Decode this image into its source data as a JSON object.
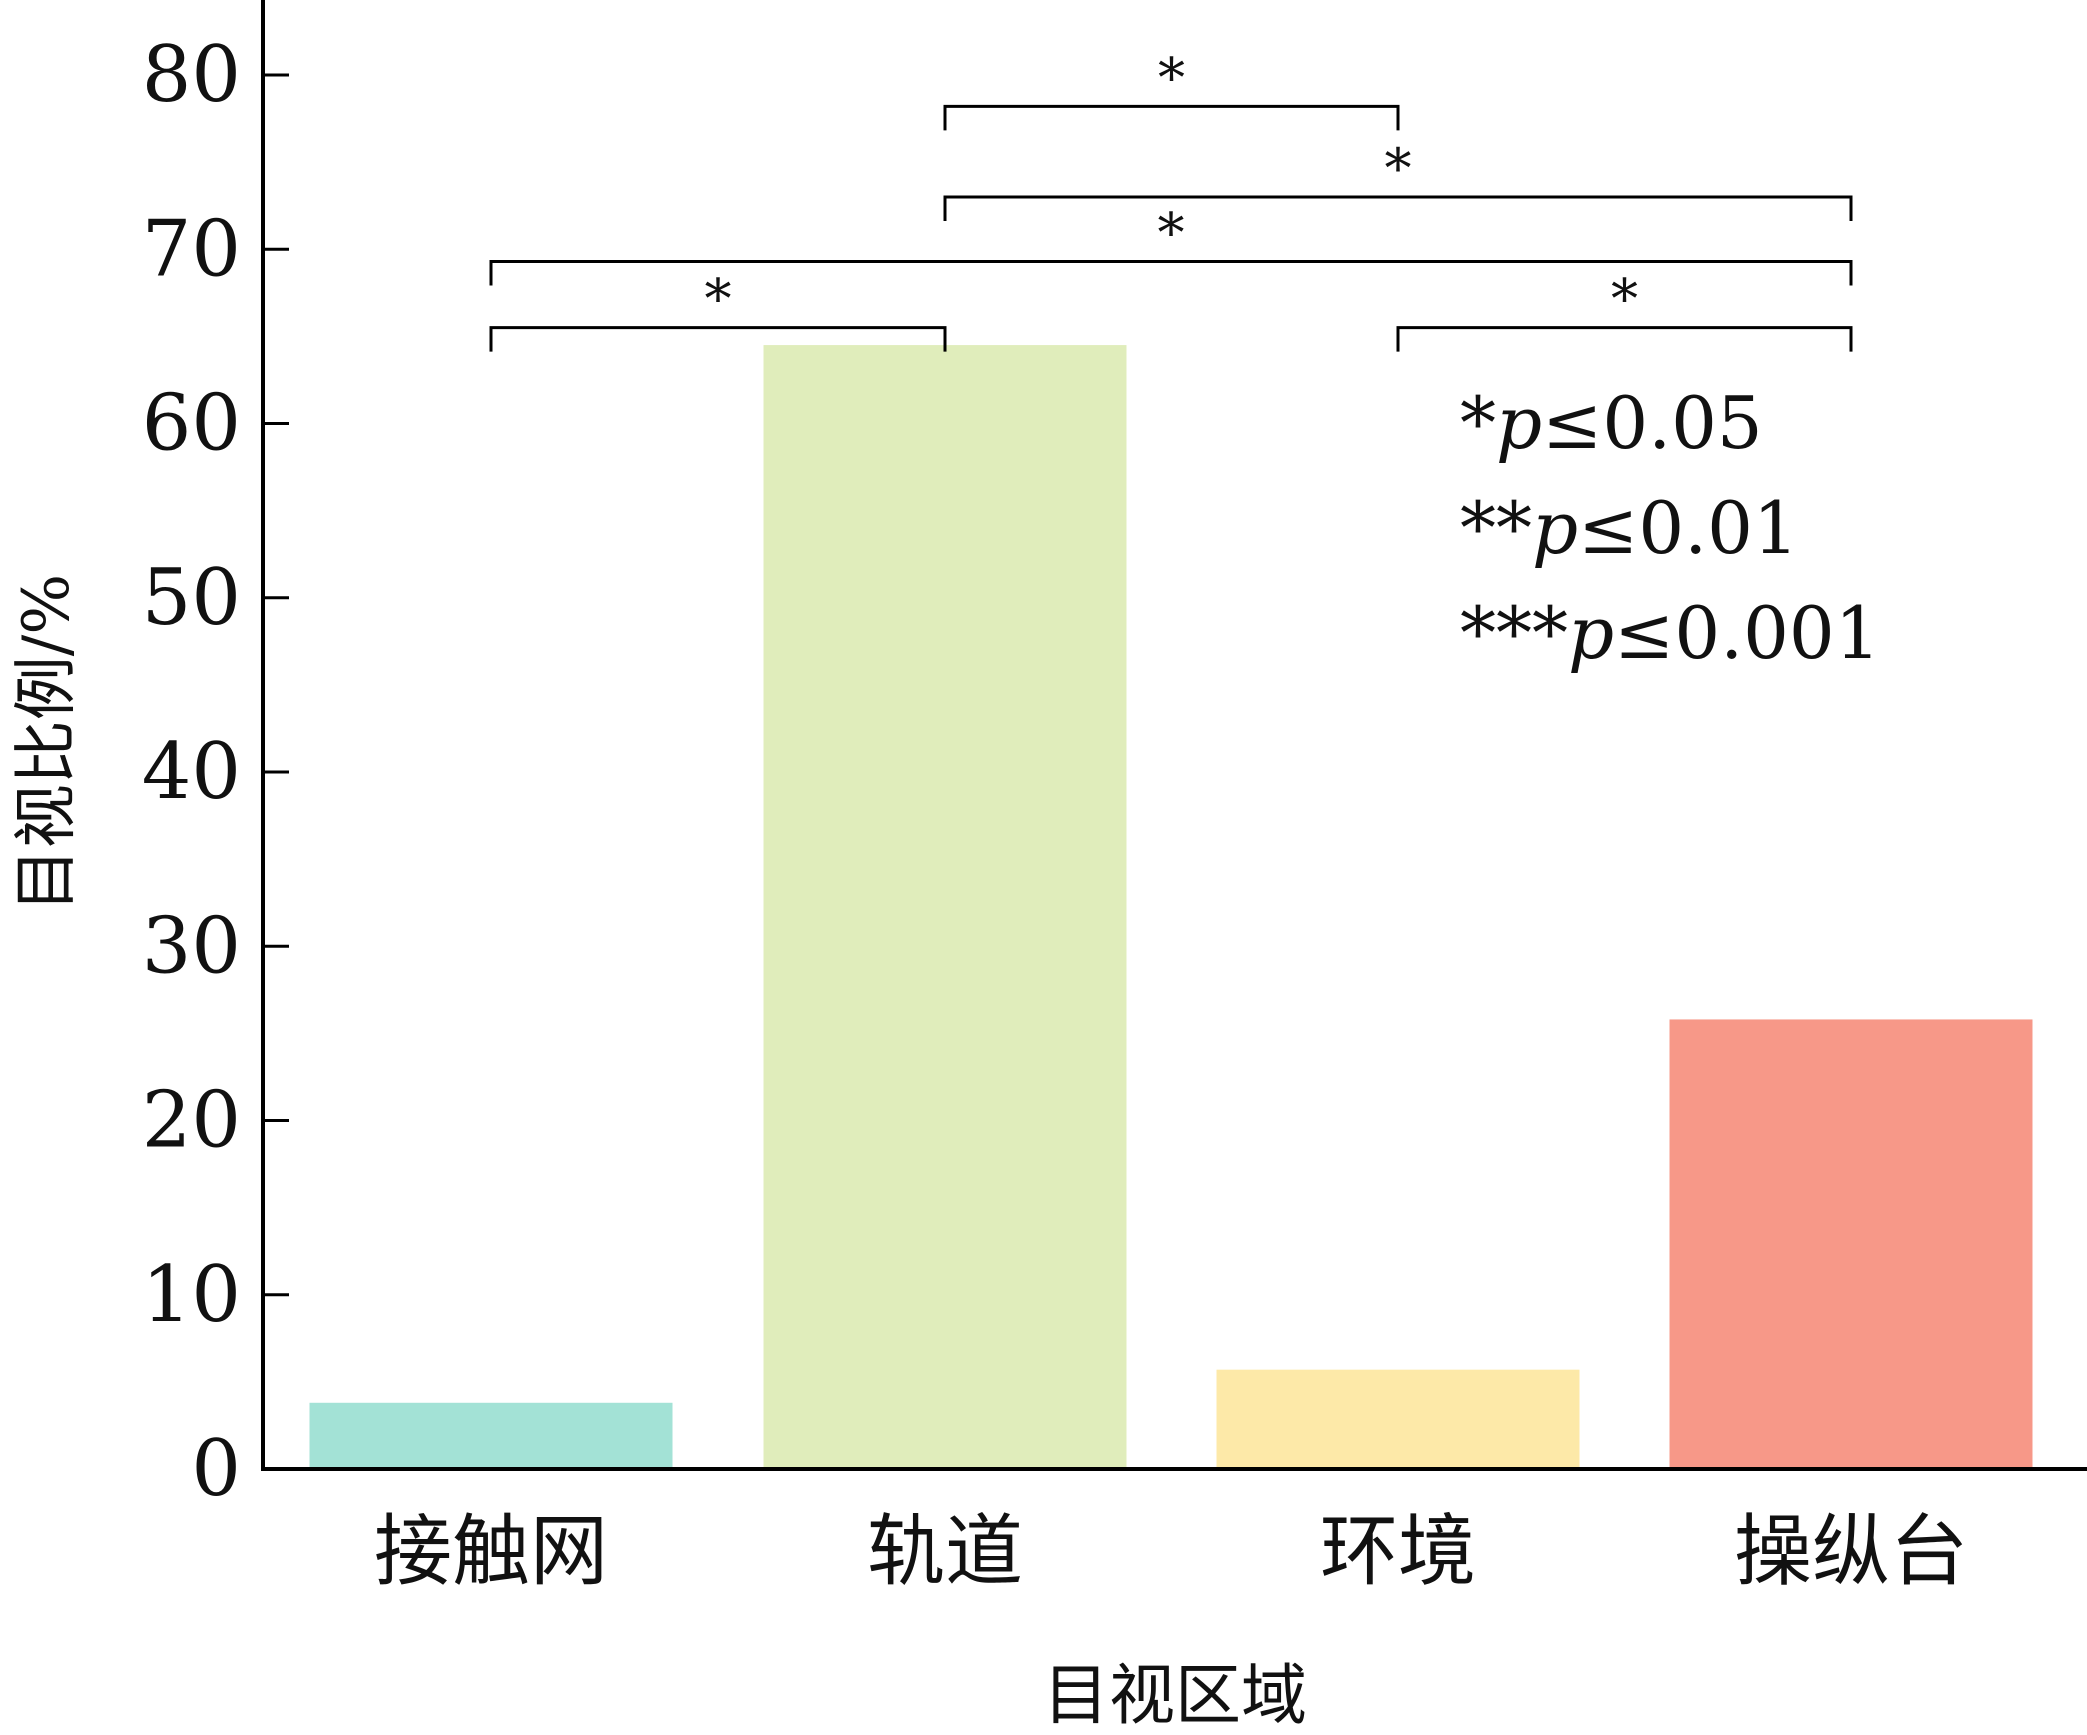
{
  "chart_data": {
    "type": "bar",
    "categories": [
      "接触网",
      "轨道",
      "环境",
      "操纵台"
    ],
    "values": [
      3.8,
      64.5,
      5.7,
      25.8
    ],
    "colors": [
      "#a3e2d6",
      "#e0edbb",
      "#fde9a8",
      "#f79888"
    ],
    "xlabel": "目视区域",
    "ylabel": "目视比例/%",
    "ylim": [
      0,
      84
    ],
    "yticks": [
      0,
      10,
      20,
      30,
      40,
      50,
      60,
      70,
      80
    ],
    "grid": false,
    "significance": [
      {
        "from": 0,
        "to": 1,
        "label": "*",
        "level": 65.5
      },
      {
        "from": 0,
        "to": 3,
        "label": "*",
        "level": 69.3
      },
      {
        "from": 1,
        "to": 3,
        "label": "*",
        "level": 73.0
      },
      {
        "from": 1,
        "to": 2,
        "label": "*",
        "level": 78.2
      },
      {
        "from": 2,
        "to": 3,
        "label": "*",
        "level": 65.5
      }
    ],
    "legend_lines": [
      {
        "stars": "*",
        "p": "p",
        "rest": "≤0.05"
      },
      {
        "stars": "**",
        "p": "p",
        "rest": "≤0.01"
      },
      {
        "stars": "***",
        "p": "p",
        "rest": "≤0.001"
      }
    ],
    "legend_position": "top-right"
  }
}
